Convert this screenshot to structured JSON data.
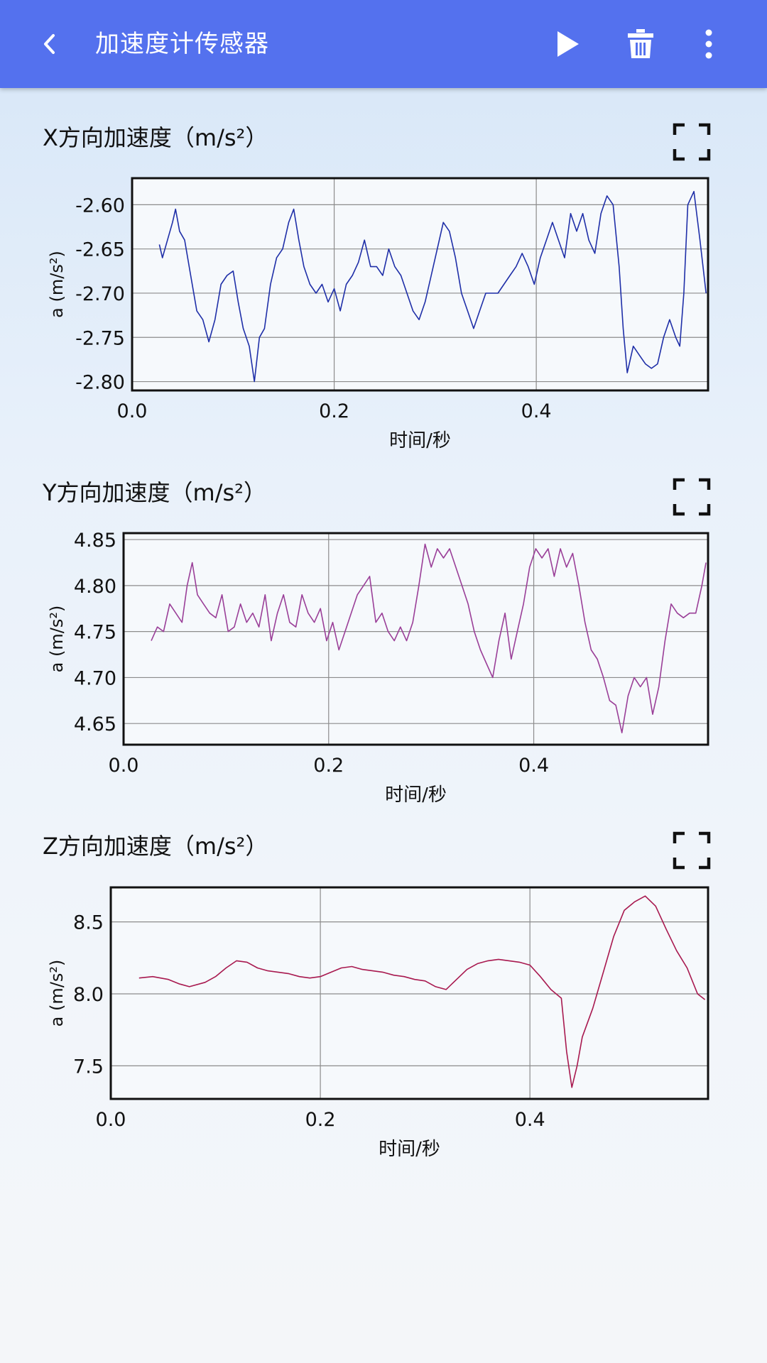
{
  "appbar": {
    "title": "加速度计传感器",
    "icons": [
      "back-arrow-icon",
      "play-icon",
      "trash-icon",
      "more-vert-icon"
    ],
    "background": "#5471ee"
  },
  "charts": [
    {
      "title": "X方向加速度（m/s²）",
      "ylabel": "a (m/s²)",
      "xlabel": "时间/秒",
      "color": "#1f2fa8"
    },
    {
      "title": "Y方向加速度（m/s²）",
      "ylabel": "a (m/s²)",
      "xlabel": "时间/秒",
      "color": "#9a3f98"
    },
    {
      "title": "Z方向加速度（m/s²）",
      "ylabel": "a (m/s²)",
      "xlabel": "时间/秒",
      "color": "#a8194f"
    }
  ],
  "chart_data": [
    {
      "type": "line",
      "title": "X方向加速度（m/s²）",
      "xlabel": "时间/秒",
      "ylabel": "a (m/s²)",
      "xlim": [
        0,
        0.57
      ],
      "ylim": [
        -2.81,
        -2.57
      ],
      "xticks": [
        "0.0",
        "0.2",
        "0.4"
      ],
      "yticks": [
        "-2.60",
        "-2.65",
        "-2.70",
        "-2.75",
        "-2.80"
      ],
      "xtick_values": [
        0,
        0.2,
        0.4
      ],
      "ytick_values": [
        -2.6,
        -2.65,
        -2.7,
        -2.75,
        -2.8
      ],
      "grid": true,
      "series": [
        {
          "color": "#1f2fa8",
          "x": [
            0.027,
            0.03,
            0.035,
            0.04,
            0.043,
            0.047,
            0.052,
            0.058,
            0.064,
            0.07,
            0.076,
            0.082,
            0.088,
            0.094,
            0.1,
            0.105,
            0.11,
            0.116,
            0.121,
            0.126,
            0.131,
            0.137,
            0.143,
            0.149,
            0.155,
            0.16,
            0.165,
            0.17,
            0.176,
            0.182,
            0.188,
            0.194,
            0.2,
            0.206,
            0.212,
            0.218,
            0.224,
            0.23,
            0.236,
            0.242,
            0.248,
            0.254,
            0.26,
            0.266,
            0.272,
            0.278,
            0.284,
            0.29,
            0.296,
            0.302,
            0.308,
            0.314,
            0.32,
            0.326,
            0.332,
            0.338,
            0.344,
            0.35,
            0.356,
            0.362,
            0.368,
            0.374,
            0.38,
            0.386,
            0.392,
            0.398,
            0.404,
            0.41,
            0.416,
            0.422,
            0.428,
            0.434,
            0.44,
            0.446,
            0.452,
            0.458,
            0.464,
            0.47,
            0.476,
            0.482,
            0.486,
            0.49,
            0.496,
            0.502,
            0.508,
            0.514,
            0.52,
            0.526,
            0.532,
            0.538,
            0.542,
            0.546,
            0.55,
            0.556,
            0.562,
            0.568
          ],
          "y": [
            -2.645,
            -2.66,
            -2.64,
            -2.62,
            -2.605,
            -2.63,
            -2.64,
            -2.68,
            -2.72,
            -2.73,
            -2.755,
            -2.73,
            -2.69,
            -2.68,
            -2.675,
            -2.71,
            -2.74,
            -2.76,
            -2.8,
            -2.75,
            -2.74,
            -2.69,
            -2.66,
            -2.65,
            -2.62,
            -2.605,
            -2.64,
            -2.67,
            -2.69,
            -2.7,
            -2.69,
            -2.71,
            -2.695,
            -2.72,
            -2.69,
            -2.68,
            -2.665,
            -2.64,
            -2.67,
            -2.67,
            -2.68,
            -2.65,
            -2.67,
            -2.68,
            -2.7,
            -2.72,
            -2.73,
            -2.71,
            -2.68,
            -2.65,
            -2.62,
            -2.63,
            -2.66,
            -2.7,
            -2.72,
            -2.74,
            -2.72,
            -2.7,
            -2.7,
            -2.7,
            -2.69,
            -2.68,
            -2.67,
            -2.655,
            -2.67,
            -2.69,
            -2.66,
            -2.64,
            -2.62,
            -2.64,
            -2.66,
            -2.61,
            -2.63,
            -2.61,
            -2.64,
            -2.655,
            -2.61,
            -2.59,
            -2.6,
            -2.67,
            -2.74,
            -2.79,
            -2.76,
            -2.77,
            -2.78,
            -2.785,
            -2.78,
            -2.75,
            -2.73,
            -2.75,
            -2.76,
            -2.7,
            -2.6,
            -2.585,
            -2.64,
            -2.7
          ]
        }
      ]
    },
    {
      "type": "line",
      "title": "Y方向加速度（m/s²）",
      "xlabel": "时间/秒",
      "ylabel": "a (m/s²)",
      "xlim": [
        0,
        0.57
      ],
      "ylim": [
        4.627,
        4.857
      ],
      "xticks": [
        "0.0",
        "0.2",
        "0.4"
      ],
      "yticks": [
        "4.85",
        "4.80",
        "4.75",
        "4.70",
        "4.65"
      ],
      "xtick_values": [
        0,
        0.2,
        0.4
      ],
      "ytick_values": [
        4.85,
        4.8,
        4.75,
        4.7,
        4.65
      ],
      "grid": true,
      "series": [
        {
          "color": "#9a3f98",
          "x": [
            0.027,
            0.033,
            0.039,
            0.045,
            0.051,
            0.057,
            0.062,
            0.067,
            0.072,
            0.078,
            0.084,
            0.09,
            0.096,
            0.102,
            0.108,
            0.114,
            0.12,
            0.126,
            0.132,
            0.138,
            0.144,
            0.15,
            0.156,
            0.162,
            0.168,
            0.174,
            0.18,
            0.186,
            0.192,
            0.198,
            0.204,
            0.21,
            0.216,
            0.222,
            0.228,
            0.234,
            0.24,
            0.246,
            0.252,
            0.258,
            0.264,
            0.27,
            0.276,
            0.282,
            0.288,
            0.294,
            0.3,
            0.306,
            0.312,
            0.318,
            0.324,
            0.33,
            0.336,
            0.342,
            0.348,
            0.354,
            0.36,
            0.366,
            0.372,
            0.378,
            0.384,
            0.39,
            0.396,
            0.402,
            0.408,
            0.414,
            0.42,
            0.426,
            0.432,
            0.438,
            0.444,
            0.45,
            0.456,
            0.462,
            0.468,
            0.474,
            0.48,
            0.486,
            0.492,
            0.498,
            0.504,
            0.51,
            0.516,
            0.522,
            0.528,
            0.534,
            0.54,
            0.546,
            0.552,
            0.558,
            0.564,
            0.568
          ],
          "y": [
            4.74,
            4.755,
            4.75,
            4.78,
            4.77,
            4.76,
            4.8,
            4.825,
            4.79,
            4.78,
            4.77,
            4.765,
            4.79,
            4.75,
            4.755,
            4.78,
            4.76,
            4.77,
            4.755,
            4.79,
            4.74,
            4.77,
            4.79,
            4.76,
            4.755,
            4.79,
            4.77,
            4.76,
            4.775,
            4.74,
            4.76,
            4.73,
            4.75,
            4.77,
            4.79,
            4.8,
            4.81,
            4.76,
            4.77,
            4.75,
            4.74,
            4.755,
            4.74,
            4.76,
            4.8,
            4.845,
            4.82,
            4.84,
            4.83,
            4.84,
            4.82,
            4.8,
            4.78,
            4.75,
            4.73,
            4.715,
            4.7,
            4.74,
            4.77,
            4.72,
            4.75,
            4.78,
            4.82,
            4.84,
            4.83,
            4.84,
            4.81,
            4.84,
            4.82,
            4.835,
            4.8,
            4.76,
            4.73,
            4.72,
            4.7,
            4.675,
            4.67,
            4.64,
            4.68,
            4.7,
            4.69,
            4.7,
            4.66,
            4.69,
            4.74,
            4.78,
            4.77,
            4.765,
            4.77,
            4.77,
            4.8,
            4.825
          ]
        }
      ]
    },
    {
      "type": "line",
      "title": "Z方向加速度（m/s²）",
      "xlabel": "时间/秒",
      "ylabel": "a (m/s²)",
      "xlim": [
        0,
        0.57
      ],
      "ylim": [
        7.27,
        8.74
      ],
      "xticks": [
        "0.0",
        "0.2",
        "0.4"
      ],
      "yticks": [
        "8.5",
        "8.0",
        "7.5"
      ],
      "xtick_values": [
        0,
        0.2,
        0.4
      ],
      "ytick_values": [
        8.5,
        8.0,
        7.5
      ],
      "grid": true,
      "series": [
        {
          "color": "#a8194f",
          "x": [
            0.027,
            0.04,
            0.055,
            0.065,
            0.075,
            0.09,
            0.1,
            0.11,
            0.12,
            0.13,
            0.14,
            0.15,
            0.16,
            0.17,
            0.18,
            0.19,
            0.2,
            0.21,
            0.22,
            0.23,
            0.24,
            0.25,
            0.26,
            0.27,
            0.28,
            0.29,
            0.3,
            0.31,
            0.32,
            0.33,
            0.34,
            0.35,
            0.36,
            0.37,
            0.38,
            0.39,
            0.4,
            0.41,
            0.42,
            0.43,
            0.435,
            0.44,
            0.445,
            0.45,
            0.46,
            0.47,
            0.48,
            0.49,
            0.5,
            0.51,
            0.52,
            0.53,
            0.54,
            0.55,
            0.56,
            0.567
          ],
          "y": [
            8.11,
            8.12,
            8.1,
            8.07,
            8.05,
            8.08,
            8.12,
            8.18,
            8.23,
            8.22,
            8.18,
            8.16,
            8.15,
            8.14,
            8.12,
            8.11,
            8.12,
            8.15,
            8.18,
            8.19,
            8.17,
            8.16,
            8.15,
            8.13,
            8.12,
            8.1,
            8.09,
            8.05,
            8.03,
            8.1,
            8.17,
            8.21,
            8.23,
            8.24,
            8.23,
            8.22,
            8.2,
            8.12,
            8.03,
            7.97,
            7.6,
            7.35,
            7.5,
            7.7,
            7.9,
            8.15,
            8.4,
            8.58,
            8.64,
            8.68,
            8.61,
            8.45,
            8.3,
            8.18,
            8.0,
            7.96
          ]
        }
      ]
    }
  ]
}
